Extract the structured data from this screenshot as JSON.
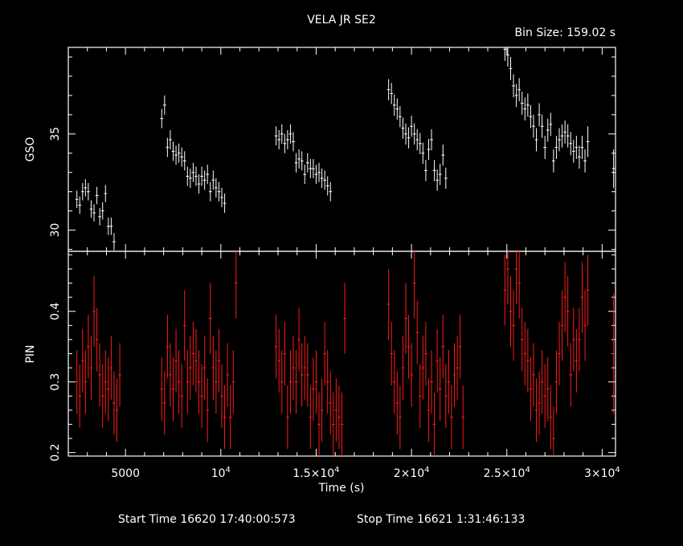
{
  "chart_data": {
    "type": "scatter",
    "title": "VELA JR SE2",
    "bin_size_label": "Bin Size:  159.02 s",
    "xlabel": "Time (s)",
    "xlim": [
      2000,
      30700
    ],
    "x_ticks": [
      {
        "value": 5000,
        "base": "5000",
        "exp": ""
      },
      {
        "value": 10000,
        "base": "10",
        "exp": "4"
      },
      {
        "value": 15000,
        "base": "1.5×10",
        "exp": "4"
      },
      {
        "value": 20000,
        "base": "2×10",
        "exp": "4"
      },
      {
        "value": 25000,
        "base": "2.5×10",
        "exp": "4"
      },
      {
        "value": 30000,
        "base": "3×10",
        "exp": "4"
      }
    ],
    "footer": {
      "start_label": "Start Time 16620 17:40:00:573",
      "stop_label": "Stop Time 16621   1:31:46:133"
    },
    "panels": [
      {
        "name": "GSO",
        "ylabel": "GSO",
        "ylim": [
          28.9,
          39.5
        ],
        "y_ticks": [
          30,
          35
        ],
        "color": "#ffffff",
        "xerr": 80,
        "points": [
          [
            2450,
            31.6,
            0.45
          ],
          [
            2600,
            31.3,
            0.45
          ],
          [
            2750,
            32.0,
            0.45
          ],
          [
            2900,
            32.2,
            0.45
          ],
          [
            3050,
            32.0,
            0.45
          ],
          [
            3200,
            31.1,
            0.45
          ],
          [
            3350,
            30.9,
            0.45
          ],
          [
            3500,
            31.8,
            0.45
          ],
          [
            3650,
            30.7,
            0.45
          ],
          [
            3800,
            31.0,
            0.45
          ],
          [
            3950,
            31.9,
            0.45
          ],
          [
            4100,
            30.2,
            0.45
          ],
          [
            4250,
            30.2,
            0.45
          ],
          [
            4400,
            29.4,
            0.45
          ],
          [
            6900,
            35.8,
            0.5
          ],
          [
            7050,
            36.5,
            0.5
          ],
          [
            7200,
            34.3,
            0.5
          ],
          [
            7350,
            34.7,
            0.5
          ],
          [
            7500,
            34.1,
            0.5
          ],
          [
            7650,
            33.9,
            0.5
          ],
          [
            7800,
            34.0,
            0.5
          ],
          [
            7950,
            33.8,
            0.5
          ],
          [
            8100,
            33.6,
            0.5
          ],
          [
            8250,
            32.8,
            0.5
          ],
          [
            8400,
            32.7,
            0.5
          ],
          [
            8550,
            33.0,
            0.5
          ],
          [
            8700,
            32.8,
            0.5
          ],
          [
            8850,
            32.4,
            0.5
          ],
          [
            9000,
            32.8,
            0.5
          ],
          [
            9150,
            32.6,
            0.5
          ],
          [
            9300,
            32.9,
            0.5
          ],
          [
            9450,
            32.0,
            0.5
          ],
          [
            9600,
            32.6,
            0.5
          ],
          [
            9750,
            32.2,
            0.5
          ],
          [
            9900,
            32.0,
            0.5
          ],
          [
            10050,
            31.7,
            0.5
          ],
          [
            10200,
            31.4,
            0.5
          ],
          [
            12900,
            34.9,
            0.5
          ],
          [
            13050,
            34.7,
            0.5
          ],
          [
            13200,
            35.0,
            0.5
          ],
          [
            13350,
            34.5,
            0.5
          ],
          [
            13500,
            34.7,
            0.5
          ],
          [
            13650,
            35.0,
            0.5
          ],
          [
            13800,
            34.6,
            0.5
          ],
          [
            13950,
            33.5,
            0.5
          ],
          [
            14100,
            33.7,
            0.5
          ],
          [
            14250,
            33.6,
            0.5
          ],
          [
            14400,
            32.9,
            0.5
          ],
          [
            14550,
            33.5,
            0.5
          ],
          [
            14700,
            33.2,
            0.5
          ],
          [
            14850,
            33.2,
            0.5
          ],
          [
            15000,
            32.9,
            0.5
          ],
          [
            15150,
            33.0,
            0.5
          ],
          [
            15300,
            32.7,
            0.5
          ],
          [
            15450,
            32.6,
            0.5
          ],
          [
            15600,
            32.3,
            0.5
          ],
          [
            15750,
            32.0,
            0.5
          ],
          [
            18800,
            37.3,
            0.55
          ],
          [
            18950,
            37.1,
            0.55
          ],
          [
            19100,
            36.5,
            0.55
          ],
          [
            19250,
            36.3,
            0.55
          ],
          [
            19400,
            35.9,
            0.55
          ],
          [
            19550,
            35.3,
            0.55
          ],
          [
            19700,
            35.0,
            0.55
          ],
          [
            19850,
            34.8,
            0.55
          ],
          [
            20000,
            35.4,
            0.55
          ],
          [
            20150,
            35.0,
            0.55
          ],
          [
            20300,
            34.7,
            0.55
          ],
          [
            20450,
            34.5,
            0.55
          ],
          [
            20600,
            34.0,
            0.55
          ],
          [
            20750,
            33.1,
            0.55
          ],
          [
            20900,
            34.2,
            0.55
          ],
          [
            21050,
            34.7,
            0.55
          ],
          [
            21200,
            33.1,
            0.55
          ],
          [
            21350,
            32.6,
            0.55
          ],
          [
            21500,
            32.9,
            0.55
          ],
          [
            21650,
            33.9,
            0.55
          ],
          [
            21800,
            32.7,
            0.55
          ],
          [
            24900,
            39.4,
            0.6
          ],
          [
            25050,
            39.1,
            0.6
          ],
          [
            25200,
            38.4,
            0.6
          ],
          [
            25350,
            37.5,
            0.6
          ],
          [
            25500,
            37.0,
            0.6
          ],
          [
            25650,
            37.3,
            0.6
          ],
          [
            25800,
            36.6,
            0.6
          ],
          [
            25950,
            36.3,
            0.6
          ],
          [
            26100,
            36.5,
            0.6
          ],
          [
            26250,
            35.9,
            0.6
          ],
          [
            26400,
            35.4,
            0.6
          ],
          [
            26550,
            34.7,
            0.6
          ],
          [
            26700,
            36.0,
            0.6
          ],
          [
            26850,
            35.4,
            0.6
          ],
          [
            27000,
            34.3,
            0.6
          ],
          [
            27150,
            35.2,
            0.6
          ],
          [
            27300,
            35.5,
            0.6
          ],
          [
            27450,
            33.6,
            0.6
          ],
          [
            27600,
            34.3,
            0.6
          ],
          [
            27750,
            34.7,
            0.6
          ],
          [
            27900,
            34.9,
            0.6
          ],
          [
            28050,
            35.1,
            0.6
          ],
          [
            28200,
            34.9,
            0.6
          ],
          [
            28350,
            34.5,
            0.6
          ],
          [
            28500,
            34.1,
            0.6
          ],
          [
            28650,
            34.3,
            0.6
          ],
          [
            28800,
            33.8,
            0.6
          ],
          [
            28950,
            34.3,
            0.6
          ],
          [
            29100,
            33.6,
            0.6
          ],
          [
            29250,
            34.6,
            0.8
          ],
          [
            30600,
            33.2,
            1.0
          ]
        ]
      },
      {
        "name": "PIN",
        "ylabel": "PIN",
        "ylim": [
          0.195,
          0.485
        ],
        "y_ticks": [
          0.2,
          0.3,
          0.4
        ],
        "color": "#ff1a1a",
        "xerr": 80,
        "points": [
          [
            2450,
            0.3,
            0.045
          ],
          [
            2600,
            0.28,
            0.045
          ],
          [
            2750,
            0.33,
            0.045
          ],
          [
            2900,
            0.3,
            0.045
          ],
          [
            3050,
            0.35,
            0.045
          ],
          [
            3200,
            0.32,
            0.045
          ],
          [
            3350,
            0.4,
            0.05
          ],
          [
            3500,
            0.36,
            0.045
          ],
          [
            3650,
            0.31,
            0.045
          ],
          [
            3800,
            0.28,
            0.045
          ],
          [
            3950,
            0.3,
            0.045
          ],
          [
            4100,
            0.29,
            0.045
          ],
          [
            4250,
            0.32,
            0.045
          ],
          [
            4400,
            0.27,
            0.045
          ],
          [
            4550,
            0.26,
            0.045
          ],
          [
            4700,
            0.31,
            0.045
          ],
          [
            6900,
            0.29,
            0.045
          ],
          [
            7050,
            0.27,
            0.045
          ],
          [
            7200,
            0.35,
            0.045
          ],
          [
            7350,
            0.31,
            0.045
          ],
          [
            7500,
            0.29,
            0.045
          ],
          [
            7650,
            0.33,
            0.045
          ],
          [
            7800,
            0.3,
            0.045
          ],
          [
            7950,
            0.28,
            0.045
          ],
          [
            8100,
            0.38,
            0.05
          ],
          [
            8250,
            0.3,
            0.045
          ],
          [
            8400,
            0.32,
            0.045
          ],
          [
            8550,
            0.34,
            0.045
          ],
          [
            8700,
            0.33,
            0.045
          ],
          [
            8850,
            0.3,
            0.045
          ],
          [
            9000,
            0.28,
            0.045
          ],
          [
            9150,
            0.32,
            0.045
          ],
          [
            9300,
            0.26,
            0.045
          ],
          [
            9450,
            0.39,
            0.05
          ],
          [
            9600,
            0.32,
            0.045
          ],
          [
            9750,
            0.3,
            0.045
          ],
          [
            9900,
            0.33,
            0.045
          ],
          [
            10050,
            0.28,
            0.045
          ],
          [
            10200,
            0.25,
            0.045
          ],
          [
            10350,
            0.31,
            0.045
          ],
          [
            10500,
            0.25,
            0.045
          ],
          [
            10650,
            0.3,
            0.045
          ],
          [
            10800,
            0.44,
            0.05
          ],
          [
            12900,
            0.35,
            0.045
          ],
          [
            13050,
            0.33,
            0.045
          ],
          [
            13200,
            0.3,
            0.045
          ],
          [
            13350,
            0.34,
            0.045
          ],
          [
            13500,
            0.25,
            0.045
          ],
          [
            13650,
            0.3,
            0.045
          ],
          [
            13800,
            0.32,
            0.045
          ],
          [
            13950,
            0.3,
            0.045
          ],
          [
            14100,
            0.36,
            0.045
          ],
          [
            14250,
            0.31,
            0.045
          ],
          [
            14400,
            0.32,
            0.045
          ],
          [
            14550,
            0.31,
            0.045
          ],
          [
            14700,
            0.25,
            0.045
          ],
          [
            14850,
            0.29,
            0.045
          ],
          [
            15000,
            0.3,
            0.045
          ],
          [
            15150,
            0.24,
            0.045
          ],
          [
            15300,
            0.26,
            0.045
          ],
          [
            15450,
            0.34,
            0.045
          ],
          [
            15600,
            0.3,
            0.045
          ],
          [
            15750,
            0.27,
            0.045
          ],
          [
            15900,
            0.24,
            0.045
          ],
          [
            16050,
            0.26,
            0.045
          ],
          [
            16200,
            0.25,
            0.045
          ],
          [
            16350,
            0.24,
            0.045
          ],
          [
            16500,
            0.39,
            0.05
          ],
          [
            18800,
            0.41,
            0.05
          ],
          [
            18950,
            0.34,
            0.045
          ],
          [
            19100,
            0.3,
            0.045
          ],
          [
            19250,
            0.27,
            0.045
          ],
          [
            19400,
            0.25,
            0.045
          ],
          [
            19550,
            0.32,
            0.045
          ],
          [
            19700,
            0.39,
            0.05
          ],
          [
            19850,
            0.35,
            0.045
          ],
          [
            20000,
            0.31,
            0.045
          ],
          [
            20150,
            0.44,
            0.05
          ],
          [
            20300,
            0.37,
            0.045
          ],
          [
            20450,
            0.28,
            0.045
          ],
          [
            20600,
            0.32,
            0.045
          ],
          [
            20750,
            0.34,
            0.045
          ],
          [
            20900,
            0.26,
            0.045
          ],
          [
            21050,
            0.3,
            0.045
          ],
          [
            21200,
            0.24,
            0.045
          ],
          [
            21350,
            0.33,
            0.045
          ],
          [
            21500,
            0.29,
            0.045
          ],
          [
            21650,
            0.35,
            0.045
          ],
          [
            21800,
            0.28,
            0.045
          ],
          [
            21950,
            0.3,
            0.045
          ],
          [
            22100,
            0.25,
            0.045
          ],
          [
            22250,
            0.31,
            0.045
          ],
          [
            22400,
            0.32,
            0.045
          ],
          [
            22550,
            0.35,
            0.045
          ],
          [
            22700,
            0.25,
            0.045
          ],
          [
            24900,
            0.43,
            0.05
          ],
          [
            25050,
            0.46,
            0.05
          ],
          [
            25200,
            0.4,
            0.05
          ],
          [
            25350,
            0.38,
            0.05
          ],
          [
            25500,
            0.46,
            0.05
          ],
          [
            25650,
            0.44,
            0.05
          ],
          [
            25800,
            0.36,
            0.045
          ],
          [
            25950,
            0.34,
            0.045
          ],
          [
            26100,
            0.33,
            0.045
          ],
          [
            26250,
            0.29,
            0.045
          ],
          [
            26400,
            0.31,
            0.045
          ],
          [
            26550,
            0.26,
            0.045
          ],
          [
            26700,
            0.27,
            0.045
          ],
          [
            26850,
            0.3,
            0.045
          ],
          [
            27000,
            0.28,
            0.045
          ],
          [
            27150,
            0.29,
            0.045
          ],
          [
            27300,
            0.25,
            0.045
          ],
          [
            27450,
            0.22,
            0.045
          ],
          [
            27600,
            0.3,
            0.045
          ],
          [
            27750,
            0.34,
            0.045
          ],
          [
            27900,
            0.38,
            0.05
          ],
          [
            28050,
            0.42,
            0.05
          ],
          [
            28200,
            0.4,
            0.05
          ],
          [
            28350,
            0.31,
            0.045
          ],
          [
            28500,
            0.36,
            0.045
          ],
          [
            28650,
            0.33,
            0.045
          ],
          [
            28800,
            0.36,
            0.045
          ],
          [
            28950,
            0.42,
            0.05
          ],
          [
            29100,
            0.38,
            0.05
          ],
          [
            29250,
            0.43,
            0.05
          ],
          [
            30600,
            0.34,
            0.085
          ]
        ]
      }
    ]
  }
}
